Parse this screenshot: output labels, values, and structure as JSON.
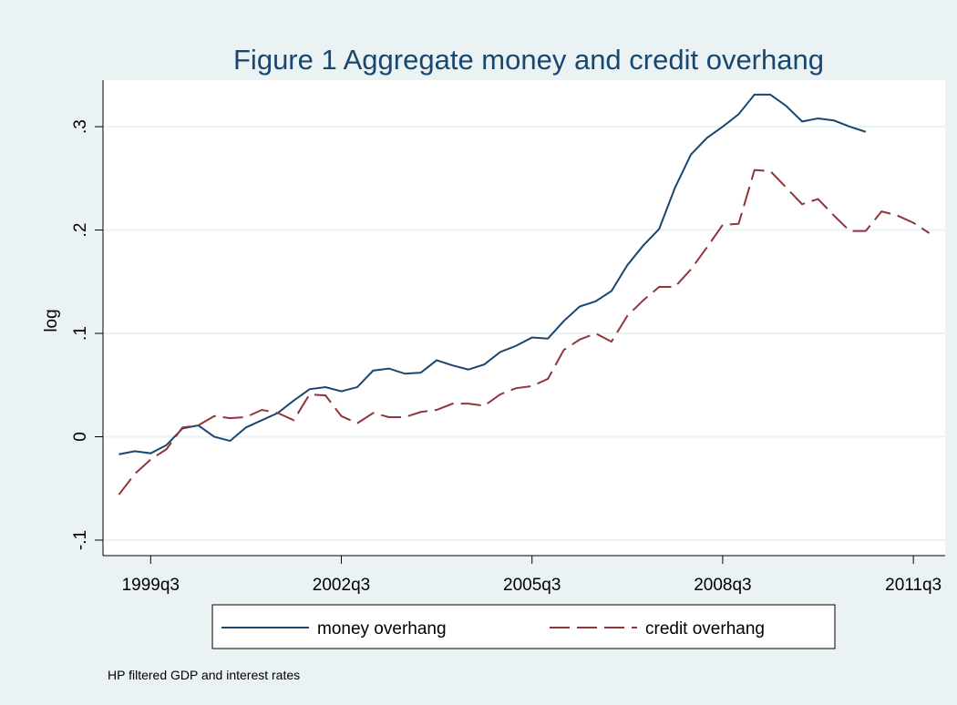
{
  "chart_data": {
    "type": "line",
    "title": "Figure 1 Aggregate money and credit overhang",
    "y_label": "log",
    "note": "HP filtered GDP and interest rates",
    "x": [
      "1999q1",
      "1999q2",
      "1999q3",
      "1999q4",
      "2000q1",
      "2000q2",
      "2000q3",
      "2000q4",
      "2001q1",
      "2001q2",
      "2001q3",
      "2001q4",
      "2002q1",
      "2002q2",
      "2002q3",
      "2002q4",
      "2003q1",
      "2003q2",
      "2003q3",
      "2003q4",
      "2004q1",
      "2004q2",
      "2004q3",
      "2004q4",
      "2005q1",
      "2005q2",
      "2005q3",
      "2005q4",
      "2006q1",
      "2006q2",
      "2006q3",
      "2006q4",
      "2007q1",
      "2007q2",
      "2007q3",
      "2007q4",
      "2008q1",
      "2008q2",
      "2008q3",
      "2008q4",
      "2009q1",
      "2009q2",
      "2009q3",
      "2009q4",
      "2010q1",
      "2010q2",
      "2010q3",
      "2010q4",
      "2011q1",
      "2011q2",
      "2011q3",
      "2011q4"
    ],
    "series": [
      {
        "name": "money overhang",
        "color": "#1a476f",
        "dash": "solid",
        "values": [
          -0.017,
          -0.014,
          -0.016,
          -0.008,
          0.008,
          0.011,
          0.0,
          -0.004,
          0.009,
          0.016,
          0.023,
          0.035,
          0.046,
          0.048,
          0.044,
          0.048,
          0.064,
          0.066,
          0.061,
          0.062,
          0.074,
          0.069,
          0.065,
          0.07,
          0.082,
          0.088,
          0.096,
          0.095,
          0.112,
          0.126,
          0.131,
          0.141,
          0.166,
          0.185,
          0.201,
          0.241,
          0.273,
          0.289,
          0.3,
          0.312,
          0.331,
          0.331,
          0.32,
          0.305,
          0.308,
          0.306,
          0.3,
          0.295,
          null,
          null,
          null,
          null
        ]
      },
      {
        "name": "credit overhang",
        "color": "#90353b",
        "dash": "dashed",
        "values": [
          -0.056,
          -0.036,
          -0.022,
          -0.012,
          0.009,
          0.011,
          0.02,
          0.018,
          0.019,
          0.026,
          0.023,
          0.016,
          0.041,
          0.04,
          0.02,
          0.013,
          0.023,
          0.019,
          0.019,
          0.024,
          0.026,
          0.032,
          0.032,
          0.03,
          0.041,
          0.047,
          0.049,
          0.056,
          0.084,
          0.094,
          0.1,
          0.092,
          0.117,
          0.132,
          0.145,
          0.145,
          0.162,
          0.183,
          0.205,
          0.206,
          0.258,
          0.257,
          0.241,
          0.225,
          0.23,
          0.214,
          0.199,
          0.199,
          0.218,
          0.214,
          0.207,
          0.197
        ]
      }
    ],
    "xlim": [
      "1998q4",
      "2012q1"
    ],
    "xticks": [
      "1999q3",
      "2002q3",
      "2005q3",
      "2008q3",
      "2011q3"
    ],
    "ylim": [
      -0.115,
      0.345
    ],
    "yticks": [
      {
        "value": -0.1,
        "label": "-.1"
      },
      0,
      {
        "value": 0.1,
        "label": ".1"
      },
      {
        "value": 0.2,
        "label": ".2"
      },
      {
        "value": 0.3,
        "label": ".3"
      }
    ],
    "grid": true,
    "legend": "bottom"
  }
}
